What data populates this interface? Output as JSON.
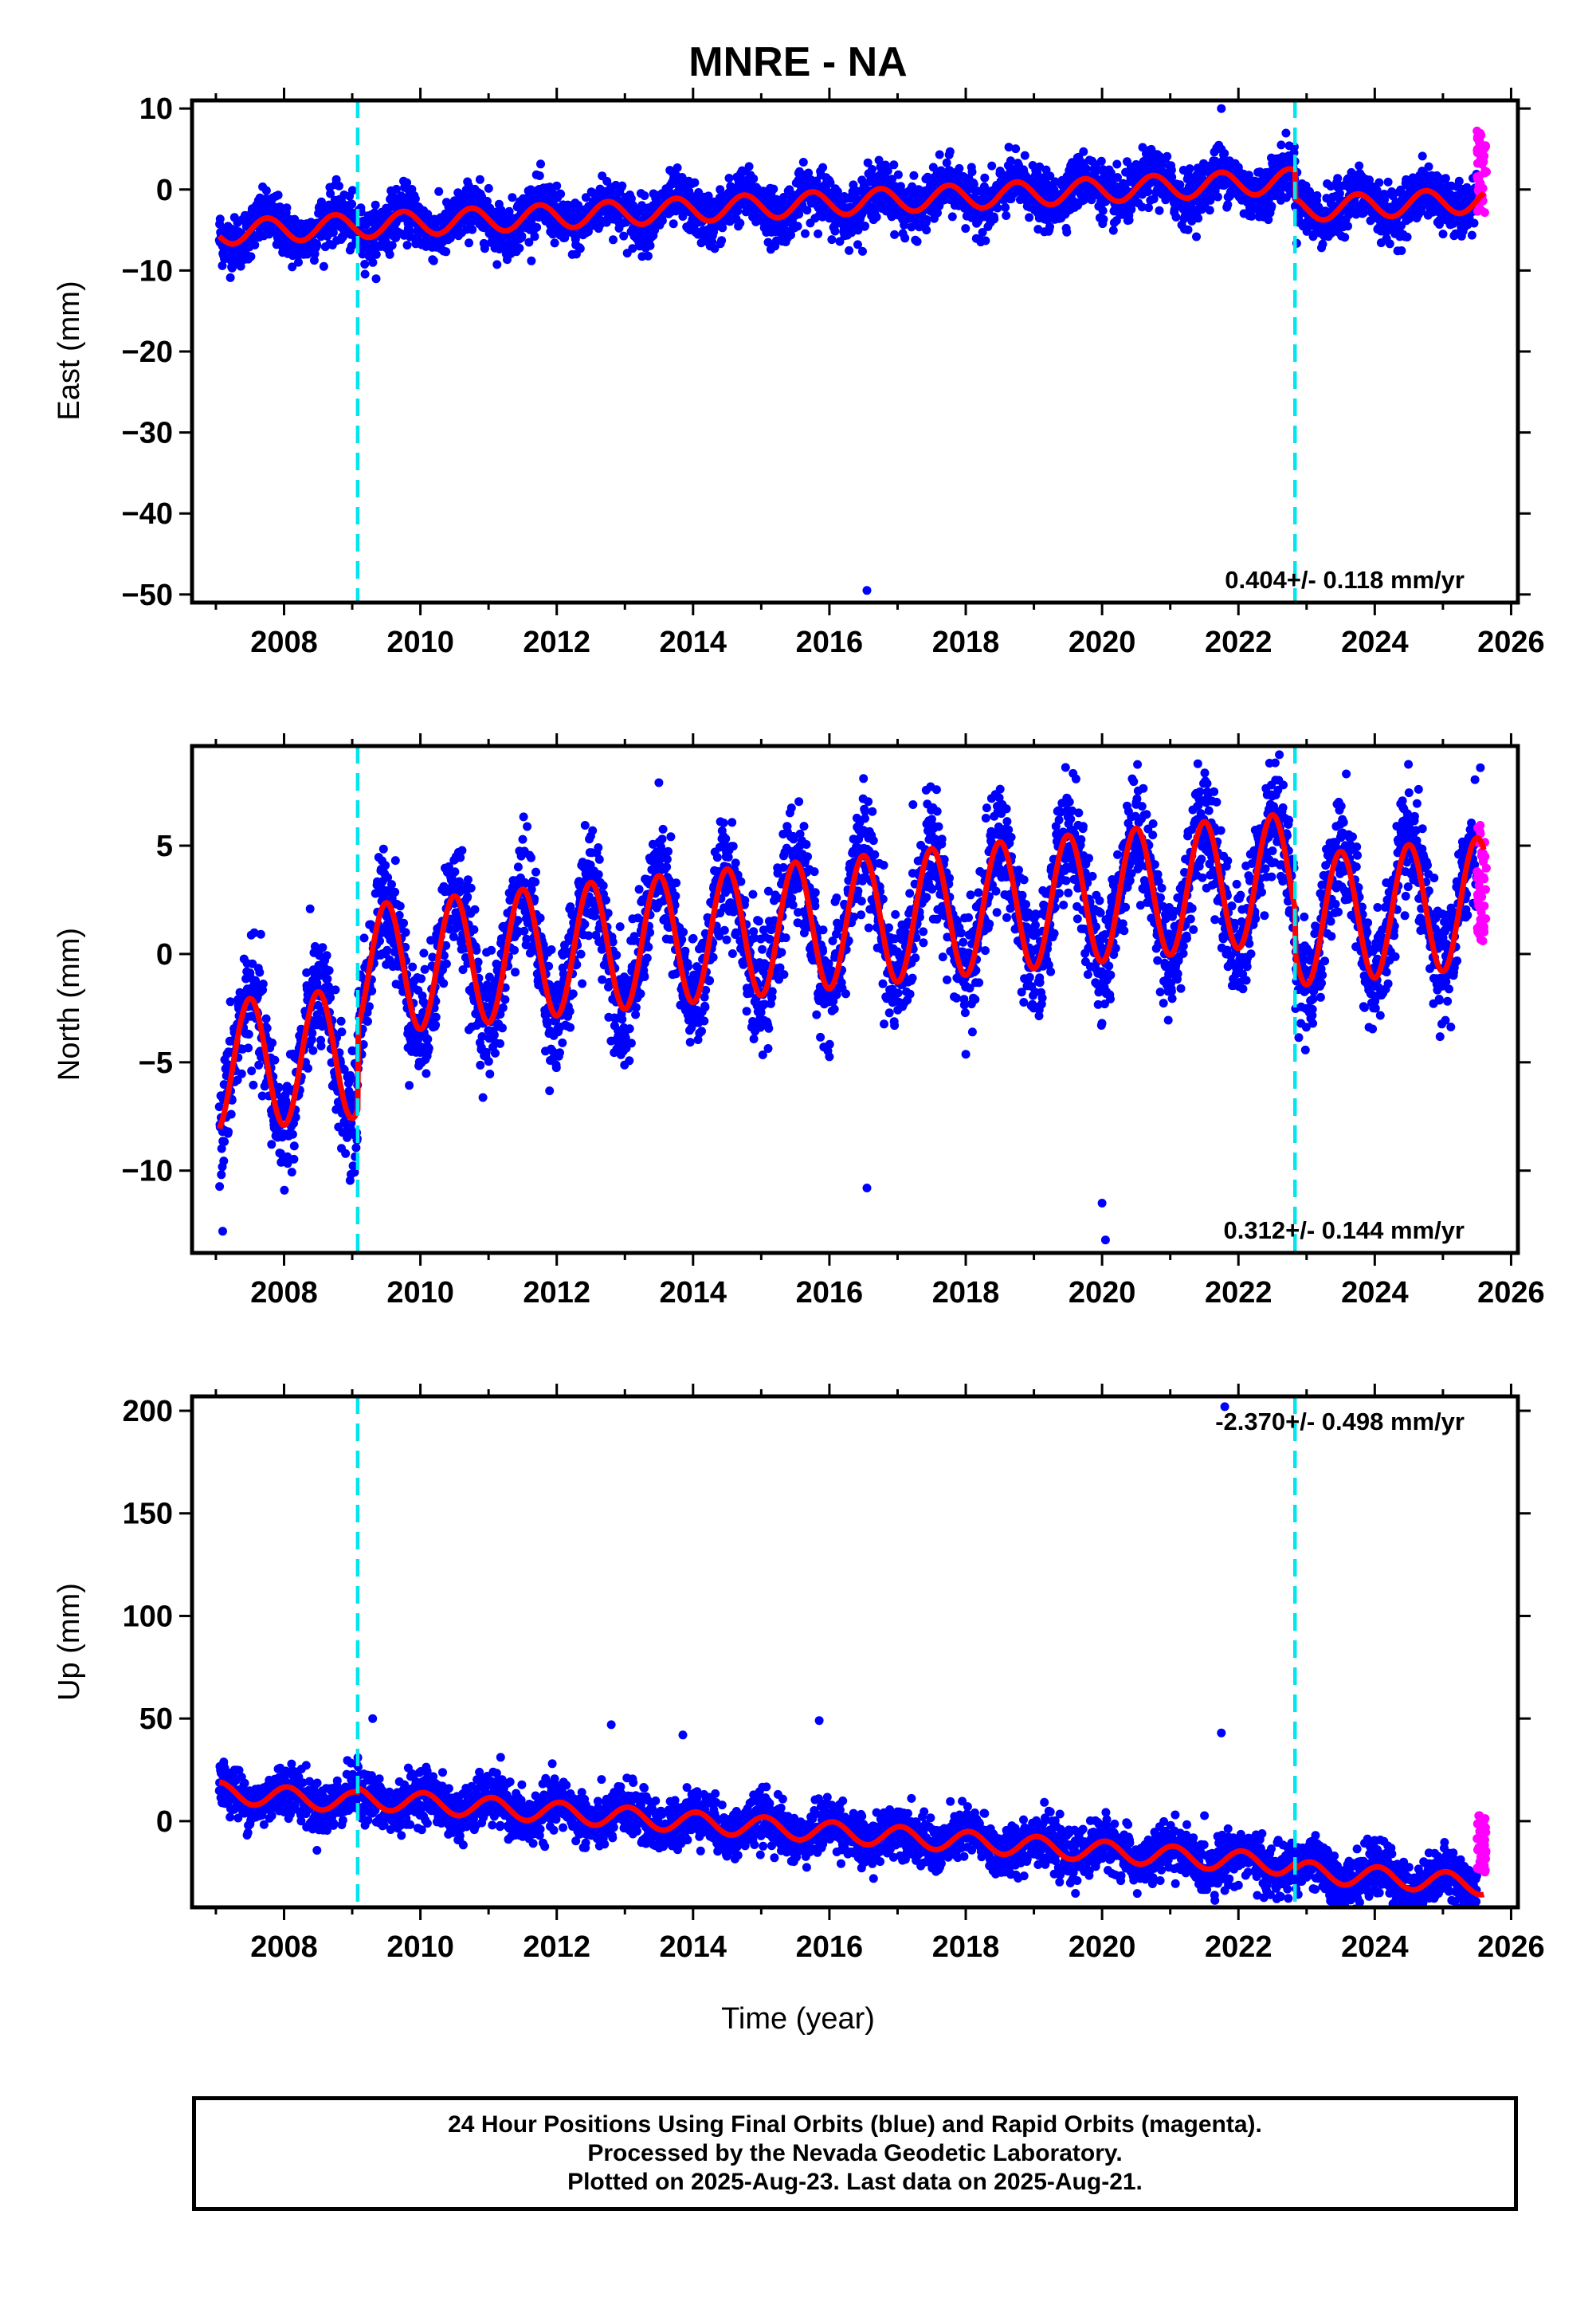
{
  "title": "MNRE - NA",
  "xlabel": "Time (year)",
  "footer": {
    "line1": "24 Hour Positions Using Final Orbits (blue) and Rapid Orbits (magenta).",
    "line2": "Processed by the Nevada Geodetic Laboratory.",
    "line3": "Plotted on 2025-Aug-23. Last data on 2025-Aug-21."
  },
  "colors": {
    "final": "#0000ff",
    "rapid": "#ff00ff",
    "model": "#ff0000",
    "steps": "#00e5ee"
  },
  "chart_data": [
    {
      "type": "scatter",
      "ylabel": "East (mm)",
      "rate_label": "0.404+/- 0.118 mm/yr",
      "rate_position": "bottom-right",
      "xlim": [
        2006.65,
        2026.1
      ],
      "ylim": [
        -51,
        11
      ],
      "xticks": [
        2008,
        2010,
        2012,
        2014,
        2016,
        2018,
        2020,
        2022,
        2024,
        2026
      ],
      "yticks": [
        10,
        0,
        -10,
        -20,
        -30,
        -40,
        -50
      ],
      "step_epochs": [
        2009.08,
        2022.83
      ],
      "model": {
        "t0": 2007.05,
        "t1": 2025.6,
        "offset_at_start": -5.3,
        "rate": 0.404,
        "annual_amp": 1.5,
        "annual_phase_year": 2007.5,
        "step_offsets": [
          0.0,
          -3.5
        ]
      },
      "series": [
        {
          "name": "Final Orbits (blue)",
          "x_range": [
            2007.05,
            2025.5
          ],
          "scatter_sd": 1.6
        },
        {
          "name": "Rapid Orbits (magenta)",
          "x_range": [
            2025.5,
            2025.64
          ],
          "y_range": [
            -3,
            7.5
          ]
        }
      ],
      "outliers": [
        [
          2016.55,
          -49.5
        ],
        [
          2021.75,
          10
        ]
      ]
    },
    {
      "type": "scatter",
      "ylabel": "North (mm)",
      "rate_label": "0.312+/- 0.144 mm/yr",
      "rate_position": "bottom-right",
      "xlim": [
        2006.65,
        2026.1
      ],
      "ylim": [
        -13.8,
        9.6
      ],
      "xticks": [
        2008,
        2010,
        2012,
        2014,
        2016,
        2018,
        2020,
        2022,
        2024,
        2026
      ],
      "yticks": [
        5,
        0,
        -5,
        -10
      ],
      "step_epochs": [
        2009.08,
        2022.83
      ],
      "model": {
        "t0": 2007.05,
        "t1": 2025.6,
        "offset_at_start": -5.2,
        "rate": 0.312,
        "annual_amp": 3.0,
        "annual_phase_year": 2007.25,
        "step_offsets": [
          3.8,
          -2.0
        ]
      },
      "series": [
        {
          "name": "Final Orbits (blue)",
          "x_range": [
            2007.05,
            2025.5
          ],
          "scatter_sd": 1.3
        },
        {
          "name": "Rapid Orbits (magenta)",
          "x_range": [
            2025.5,
            2025.64
          ],
          "y_range": [
            0.5,
            6
          ]
        }
      ],
      "outliers": [
        [
          2007.1,
          -12.8
        ],
        [
          2016.55,
          -10.8
        ],
        [
          2020.05,
          -13.2
        ],
        [
          2016.5,
          8.1
        ],
        [
          2022.6,
          9.2
        ],
        [
          2025.55,
          8.6
        ],
        [
          2020.0,
          -11.5
        ]
      ]
    },
    {
      "type": "scatter",
      "ylabel": "Up (mm)",
      "rate_label": "-2.370+/- 0.498 mm/yr",
      "rate_position": "top-right",
      "xlim": [
        2006.65,
        2026.1
      ],
      "ylim": [
        -42,
        207
      ],
      "xticks": [
        2008,
        2010,
        2012,
        2014,
        2016,
        2018,
        2020,
        2022,
        2024,
        2026
      ],
      "yticks": [
        200,
        150,
        100,
        50,
        0
      ],
      "step_epochs": [
        2009.08,
        2022.83
      ],
      "model": {
        "t0": 2007.05,
        "t1": 2025.6,
        "offset_at_start": 14.0,
        "rate": -2.37,
        "annual_amp": 5.0,
        "annual_phase_year": 2007.8,
        "step_offsets": [
          2.0,
          -3.0
        ]
      },
      "series": [
        {
          "name": "Final Orbits (blue)",
          "x_range": [
            2007.05,
            2025.5
          ],
          "scatter_sd": 6.0
        },
        {
          "name": "Rapid Orbits (magenta)",
          "x_range": [
            2025.5,
            2025.64
          ],
          "y_range": [
            -25,
            3
          ]
        }
      ],
      "outliers": [
        [
          2021.8,
          202
        ],
        [
          2015.85,
          49
        ],
        [
          2009.3,
          50
        ],
        [
          2012.8,
          47
        ],
        [
          2013.85,
          42
        ],
        [
          2021.75,
          43
        ]
      ]
    }
  ]
}
